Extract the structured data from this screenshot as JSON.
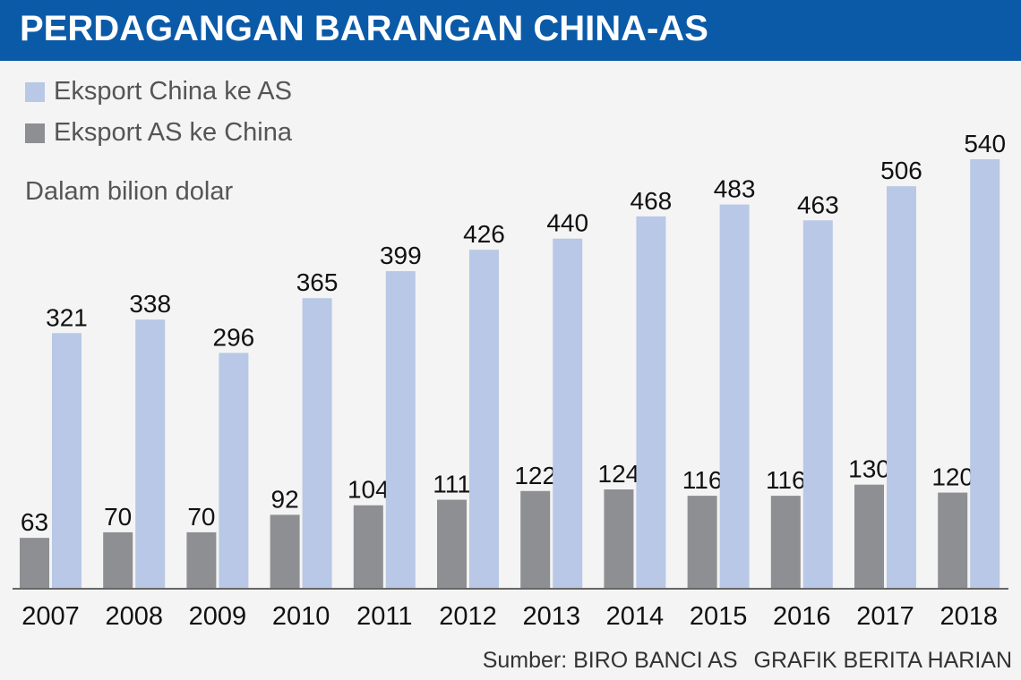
{
  "title": "PERDAGANGAN BARANGAN CHINA-AS",
  "unit_note": "Dalam bilion dolar",
  "source": "Sumber: BIRO BANCI AS",
  "credit": "GRAFIK BERITA HARIAN",
  "colors": {
    "title_bg": "#0b5aa8",
    "china_export": "#b8c8e6",
    "us_export": "#8e8f92",
    "baseline": "#666666"
  },
  "chart_data": {
    "type": "bar",
    "title": "PERDAGANGAN BARANGAN CHINA-AS",
    "xlabel": "",
    "ylabel": "",
    "ylim": [
      0,
      560
    ],
    "grid": false,
    "legend_position": "top-left",
    "categories": [
      "2007",
      "2008",
      "2009",
      "2010",
      "2011",
      "2012",
      "2013",
      "2014",
      "2015",
      "2016",
      "2017",
      "2018"
    ],
    "series": [
      {
        "name": "Eksport AS ke China",
        "color": "#8e8f92",
        "values": [
          63,
          70,
          70,
          92,
          104,
          111,
          122,
          124,
          116,
          116,
          130,
          120
        ]
      },
      {
        "name": "Eksport China ke AS",
        "color": "#b8c8e6",
        "values": [
          321,
          338,
          296,
          365,
          399,
          426,
          440,
          468,
          483,
          463,
          506,
          540
        ]
      }
    ]
  }
}
